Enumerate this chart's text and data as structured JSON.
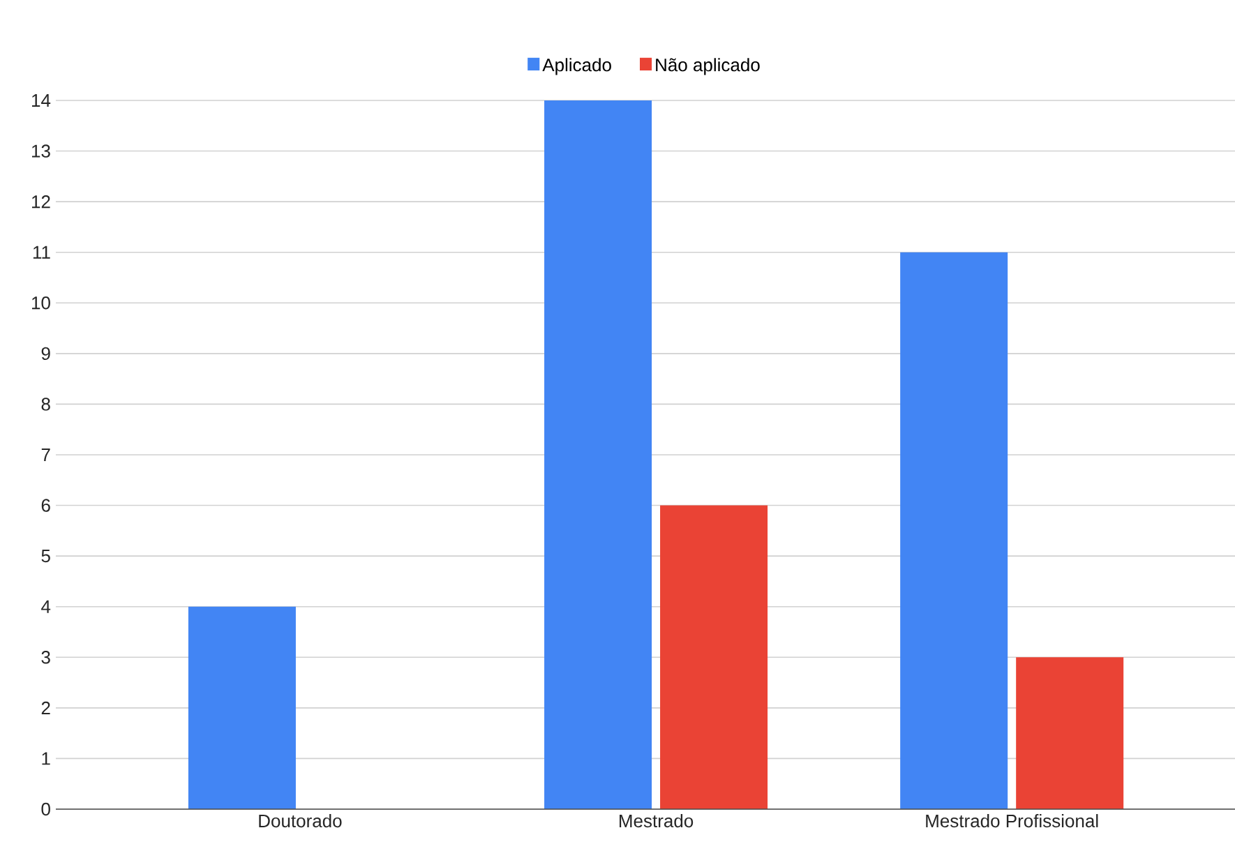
{
  "chart_data": {
    "type": "bar",
    "categories": [
      "Doutorado",
      "Mestrado",
      "Mestrado Profissional"
    ],
    "series": [
      {
        "name": "Aplicado",
        "color": "#4285f4",
        "values": [
          4,
          14,
          11
        ]
      },
      {
        "name": "Não aplicado",
        "color": "#ea4335",
        "values": [
          null,
          6,
          3
        ]
      }
    ],
    "ylim": [
      0,
      14
    ],
    "yticks": [
      0,
      1,
      2,
      3,
      4,
      5,
      6,
      7,
      8,
      9,
      10,
      11,
      12,
      13,
      14
    ],
    "grid": "y",
    "legend": "top"
  }
}
